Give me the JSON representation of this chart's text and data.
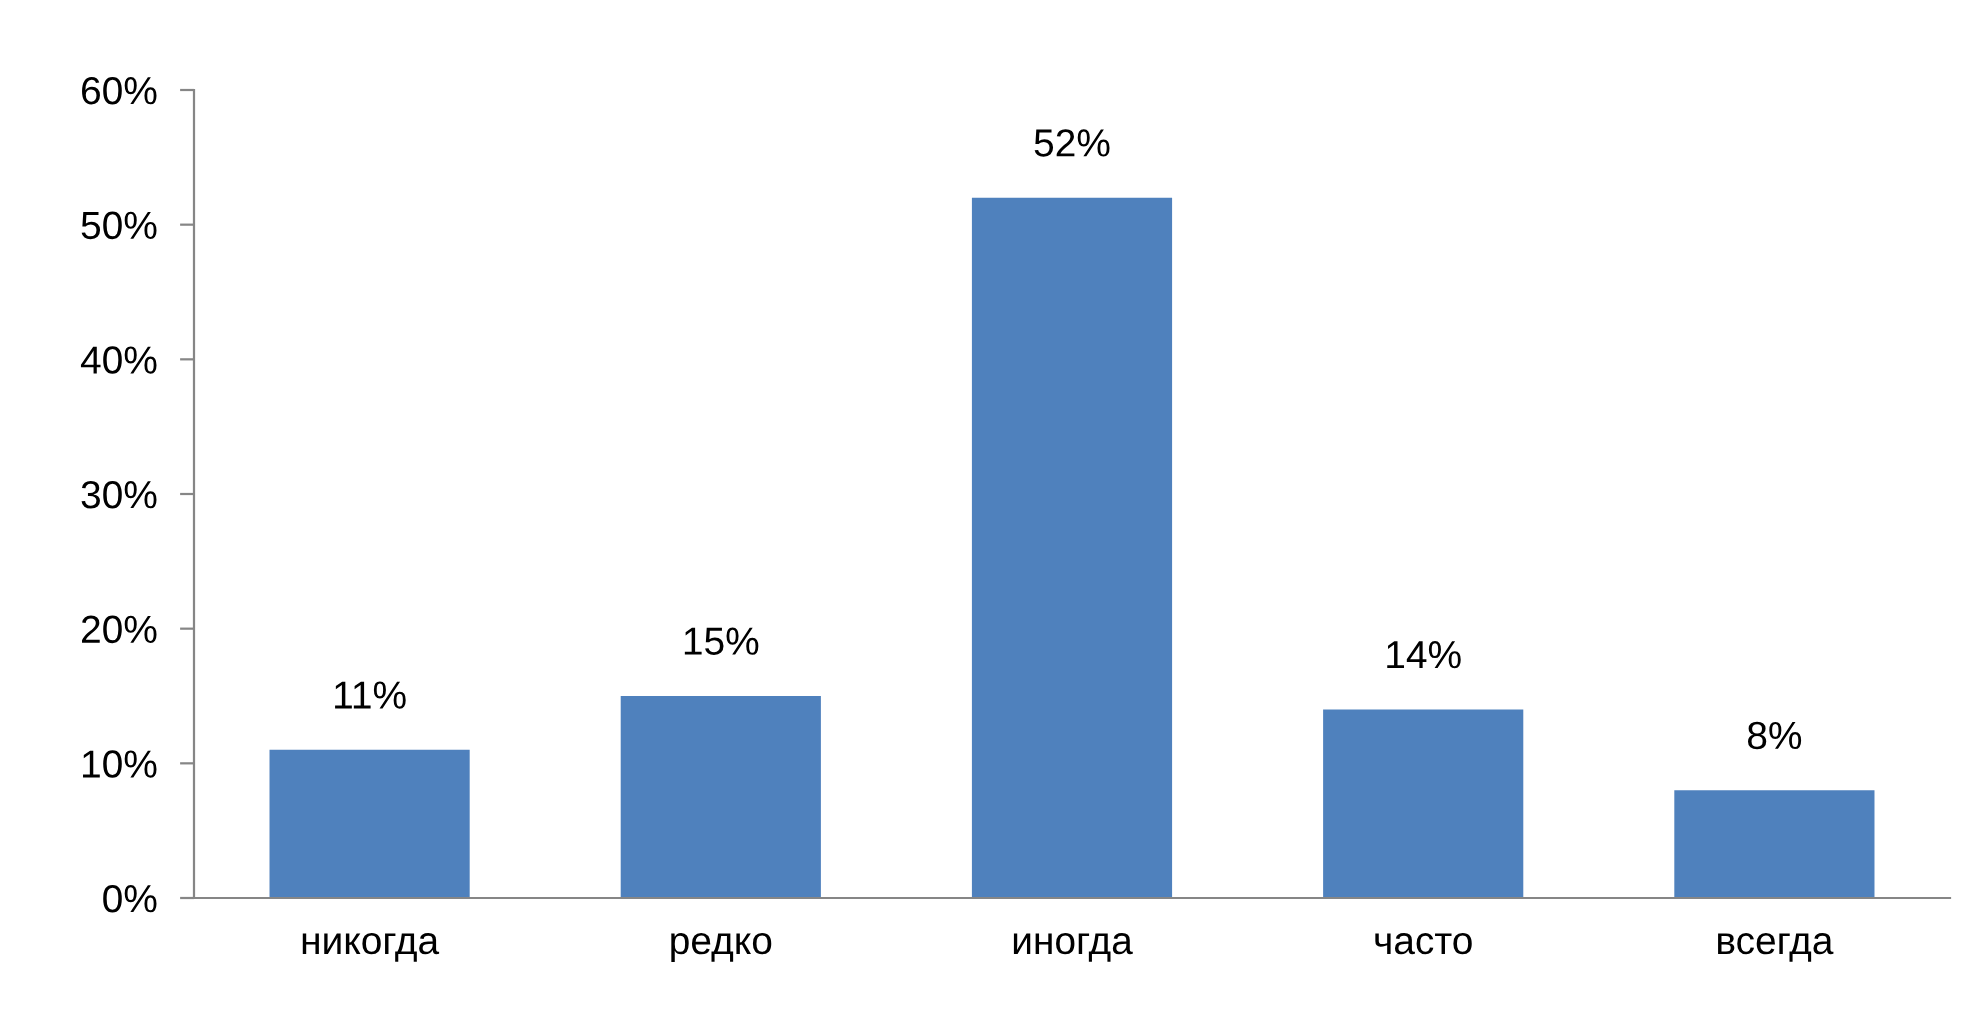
{
  "chart_data": {
    "type": "bar",
    "categories": [
      "никогда",
      "редко",
      "иногда",
      "часто",
      "всегда"
    ],
    "values": [
      11,
      15,
      52,
      14,
      8
    ],
    "value_labels": [
      "11%",
      "15%",
      "52%",
      "14%",
      "8%"
    ],
    "color": "#4f81bd",
    "ylim": [
      0,
      60
    ],
    "yticks": [
      {
        "value": 0,
        "label": "0%"
      },
      {
        "value": 10,
        "label": "10%"
      },
      {
        "value": 20,
        "label": "20%"
      },
      {
        "value": 30,
        "label": "30%"
      },
      {
        "value": 40,
        "label": "40%"
      },
      {
        "value": 50,
        "label": "50%"
      },
      {
        "value": 60,
        "label": "60%"
      }
    ],
    "grid": false,
    "legend": false
  }
}
